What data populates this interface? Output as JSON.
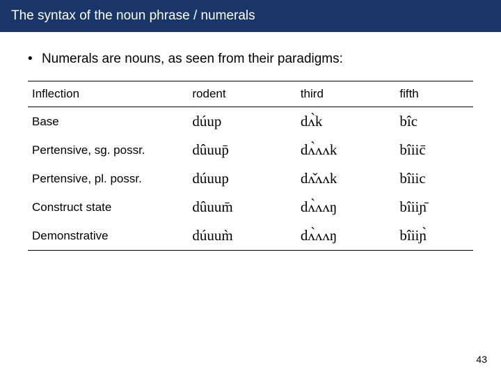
{
  "title": "The syntax of the noun phrase / numerals",
  "bullet": "Numerals are nouns, as seen from their paradigms:",
  "table": {
    "headers": [
      "Inflection",
      "rodent",
      "third",
      "fifth"
    ],
    "rows": [
      {
        "inflection": "Base",
        "rodent": "dúup",
        "third": "dʌ̀k",
        "fifth": "bîc"
      },
      {
        "inflection": "Pertensive, sg. possr.",
        "rodent": "dûuup̄",
        "third": "dʌ̀ʌʌk",
        "fifth": "bîiic̄"
      },
      {
        "inflection": "Pertensive, pl. possr.",
        "rodent": "dúuup",
        "third": "dʌ̌ʌʌk",
        "fifth": "bîiic"
      },
      {
        "inflection": "Construct state",
        "rodent": "dûuum̄",
        "third": "dʌ̀ʌʌŋ",
        "fifth": "bîiiɲ̄"
      },
      {
        "inflection": "Demonstrative",
        "rodent": "dúuum̀",
        "third": "dʌ̀ʌʌŋ",
        "fifth": "bîiiɲ̀"
      }
    ]
  },
  "page_number": "43",
  "colors": {
    "title_bg": "#1a3668",
    "title_fg": "#ffffff",
    "body_bg": "#ffffff",
    "text": "#000000"
  }
}
